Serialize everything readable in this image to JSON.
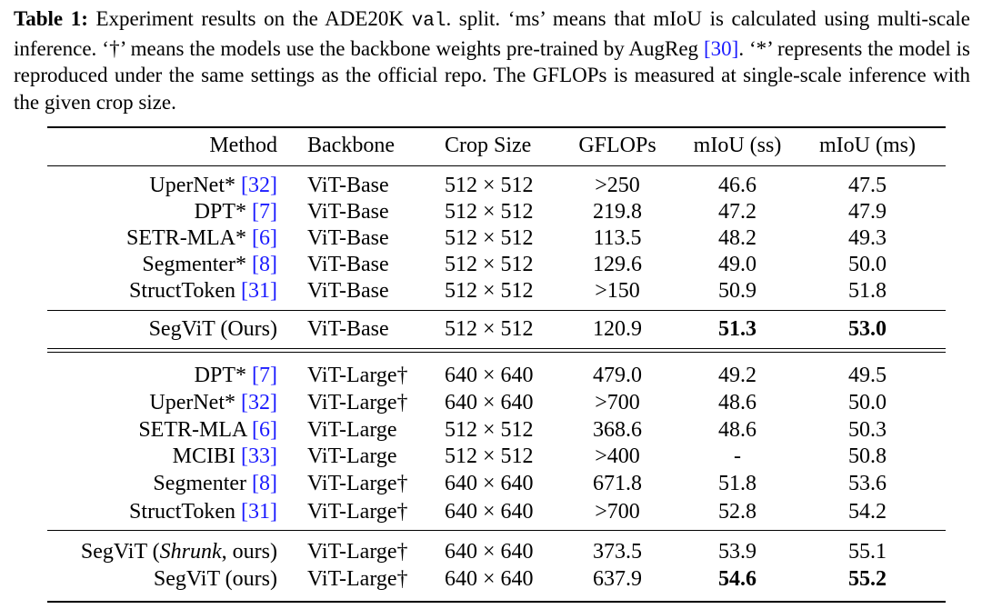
{
  "caption": {
    "label": "Table 1:",
    "part1": " Experiment results on the ADE20K ",
    "code": "val",
    "part2": ". split. ‘ms’ means that mIoU is calculated using multi-scale inference. ‘†’ means the models use the backbone weights pre-trained by AugReg ",
    "ref1": "[30]",
    "part3": ". ‘*’ represents the model is reproduced under the same settings as the official repo. The GFLOPs is measured at single-scale inference with the given crop size."
  },
  "columns": [
    "Method",
    "Backbone",
    "Crop Size",
    "GFLOPs",
    "mIoU (ss)",
    "mIoU (ms)"
  ],
  "groups": [
    {
      "rows": [
        {
          "method": "UperNet*",
          "ref": "[32]",
          "backbone": "ViT-Base",
          "dagger": false,
          "crop": "512 × 512",
          "gflops": ">250",
          "ss": "46.6",
          "ms": "47.5"
        },
        {
          "method": "DPT*",
          "ref": "[7]",
          "backbone": "ViT-Base",
          "dagger": false,
          "crop": "512 × 512",
          "gflops": "219.8",
          "ss": "47.2",
          "ms": "47.9"
        },
        {
          "method": "SETR-MLA*",
          "ref": "[6]",
          "backbone": "ViT-Base",
          "dagger": false,
          "crop": "512 × 512",
          "gflops": "113.5",
          "ss": "48.2",
          "ms": "49.3"
        },
        {
          "method": "Segmenter*",
          "ref": "[8]",
          "backbone": "ViT-Base",
          "dagger": false,
          "crop": "512 × 512",
          "gflops": "129.6",
          "ss": "49.0",
          "ms": "50.0"
        },
        {
          "method": "StructToken",
          "ref": "[31]",
          "backbone": "ViT-Base",
          "dagger": false,
          "crop": "512 × 512",
          "gflops": ">150",
          "ss": "50.9",
          "ms": "51.8"
        }
      ]
    },
    {
      "rows": [
        {
          "method": "SegViT (Ours)",
          "ref": "",
          "backbone": "ViT-Base",
          "dagger": false,
          "crop": "512 × 512",
          "gflops": "120.9",
          "ss": "51.3",
          "ms": "53.0",
          "bold_ss": true,
          "bold_ms": true
        }
      ]
    },
    {
      "rows": [
        {
          "method": "DPT*",
          "ref": "[7]",
          "backbone": "ViT-Large",
          "dagger": true,
          "crop": "640 × 640",
          "gflops": "479.0",
          "ss": "49.2",
          "ms": "49.5"
        },
        {
          "method": "UperNet*",
          "ref": "[32]",
          "backbone": "ViT-Large",
          "dagger": true,
          "crop": "640 × 640",
          "gflops": ">700",
          "ss": "48.6",
          "ms": "50.0"
        },
        {
          "method": "SETR-MLA",
          "ref": "[6]",
          "backbone": "ViT-Large",
          "dagger": false,
          "crop": "512 × 512",
          "gflops": "368.6",
          "ss": "48.6",
          "ms": "50.3"
        },
        {
          "method": "MCIBI",
          "ref": "[33]",
          "backbone": "ViT-Large",
          "dagger": false,
          "crop": "512 × 512",
          "gflops": ">400",
          "ss": "-",
          "ms": "50.8"
        },
        {
          "method": "Segmenter",
          "ref": "[8]",
          "backbone": "ViT-Large",
          "dagger": true,
          "crop": "640 × 640",
          "gflops": "671.8",
          "ss": "51.8",
          "ms": "53.6"
        },
        {
          "method": "StructToken",
          "ref": "[31]",
          "backbone": "ViT-Large",
          "dagger": true,
          "crop": "640 × 640",
          "gflops": ">700",
          "ss": "52.8",
          "ms": "54.2"
        }
      ]
    },
    {
      "rows": [
        {
          "method": "SegViT (",
          "method_italic": "Shrunk",
          "method_after": ", ours)",
          "ref": "",
          "backbone": "ViT-Large",
          "dagger": true,
          "crop": "640 × 640",
          "gflops": "373.5",
          "ss": "53.9",
          "ms": "55.1"
        },
        {
          "method": "SegViT (ours)",
          "ref": "",
          "backbone": "ViT-Large",
          "dagger": true,
          "crop": "640 × 640",
          "gflops": "637.9",
          "ss": "54.6",
          "ms": "55.2",
          "bold_ss": true,
          "bold_ms": true
        }
      ]
    }
  ],
  "dagger_symbol": "†"
}
